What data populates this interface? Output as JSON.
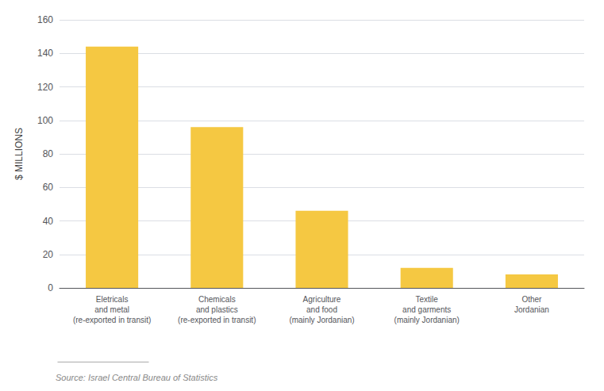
{
  "chart_data": {
    "type": "bar",
    "categories": [
      "Eletricals\nand metal\n(re-exported in transit)",
      "Chemicals\nand plastics\n(re-exported in transit)",
      "Agriculture\nand food\n(mainly Jordanian)",
      "Textile\nand garments\n(mainly Jordanian)",
      "Other\nJordanian"
    ],
    "values": [
      144,
      96,
      46,
      12,
      8
    ],
    "color": "#F5C842",
    "ylabel": "$ MILLIONS",
    "ylim": [
      0,
      160
    ],
    "yticks": [
      0,
      20,
      40,
      60,
      80,
      100,
      120,
      140,
      160
    ],
    "grid": true,
    "annotations": [
      "Source: Israel Central Bureau of Statistics"
    ]
  }
}
